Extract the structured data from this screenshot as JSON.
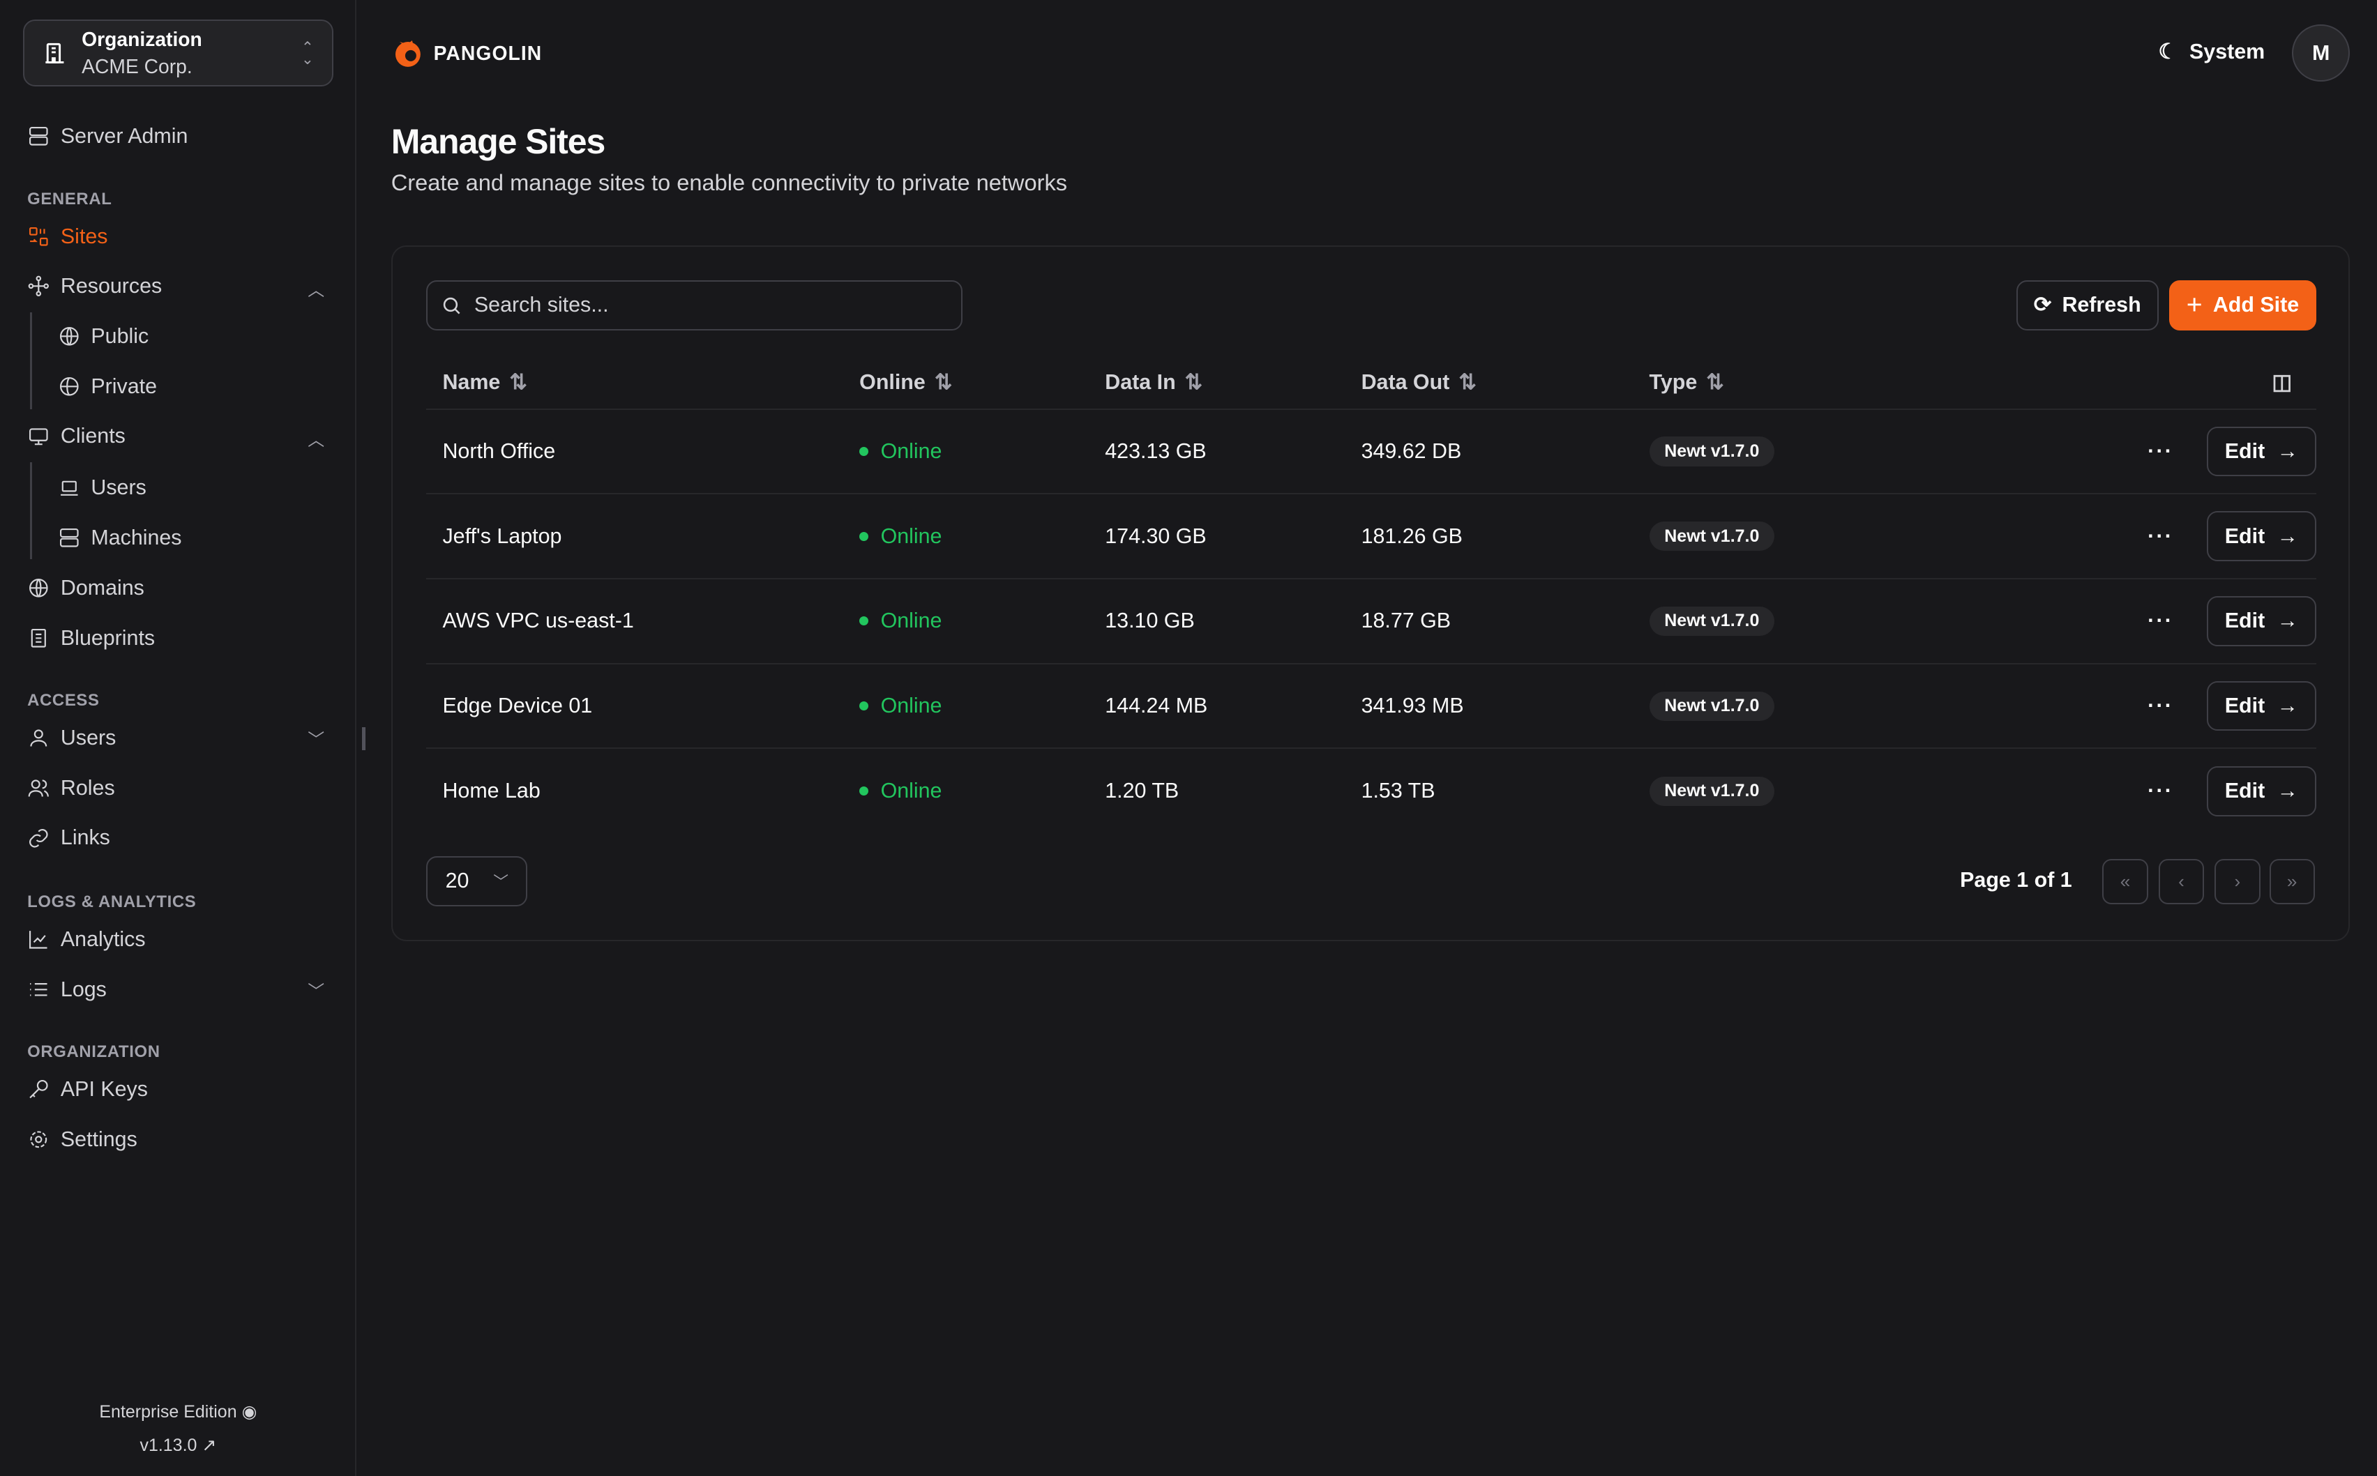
{
  "org": {
    "label": "Organization",
    "name": "ACME Corp."
  },
  "sidebar": {
    "server_admin": "Server Admin",
    "sections": {
      "general": "GENERAL",
      "access": "ACCESS",
      "logs": "LOGS & ANALYTICS",
      "organization": "ORGANIZATION"
    },
    "items": {
      "sites": "Sites",
      "resources": "Resources",
      "public": "Public",
      "private": "Private",
      "clients": "Clients",
      "users_client": "Users",
      "machines": "Machines",
      "domains": "Domains",
      "blueprints": "Blueprints",
      "users": "Users",
      "roles": "Roles",
      "links": "Links",
      "analytics": "Analytics",
      "logs": "Logs",
      "api_keys": "API Keys",
      "settings": "Settings"
    },
    "edition": "Enterprise Edition",
    "version": "v1.13.0"
  },
  "header": {
    "brand": "PANGOLIN",
    "theme": "System",
    "avatar": "M"
  },
  "page": {
    "title": "Manage Sites",
    "subtitle": "Create and manage sites to enable connectivity to private networks"
  },
  "toolbar": {
    "search_placeholder": "Search sites...",
    "refresh": "Refresh",
    "add": "Add Site"
  },
  "table": {
    "columns": [
      "Name",
      "Online",
      "Data In",
      "Data Out",
      "Type"
    ],
    "rows": [
      {
        "name": "North Office",
        "online": "Online",
        "in": "423.13 GB",
        "out": "349.62 DB",
        "type": "Newt v1.7.0"
      },
      {
        "name": "Jeff's Laptop",
        "online": "Online",
        "in": "174.30 GB",
        "out": "181.26 GB",
        "type": "Newt v1.7.0"
      },
      {
        "name": "AWS VPC us-east-1",
        "online": "Online",
        "in": "13.10 GB",
        "out": "18.77 GB",
        "type": "Newt v1.7.0"
      },
      {
        "name": "Edge Device 01",
        "online": "Online",
        "in": "144.24 MB",
        "out": "341.93 MB",
        "type": "Newt v1.7.0"
      },
      {
        "name": "Home Lab",
        "online": "Online",
        "in": "1.20 TB",
        "out": "1.53 TB",
        "type": "Newt v1.7.0"
      }
    ],
    "edit_label": "Edit"
  },
  "pagination": {
    "page_size": "20",
    "page_info": "Page 1 of 1"
  },
  "colors": {
    "accent": "#f36117",
    "online": "#22c55e",
    "background": "#18181b"
  }
}
